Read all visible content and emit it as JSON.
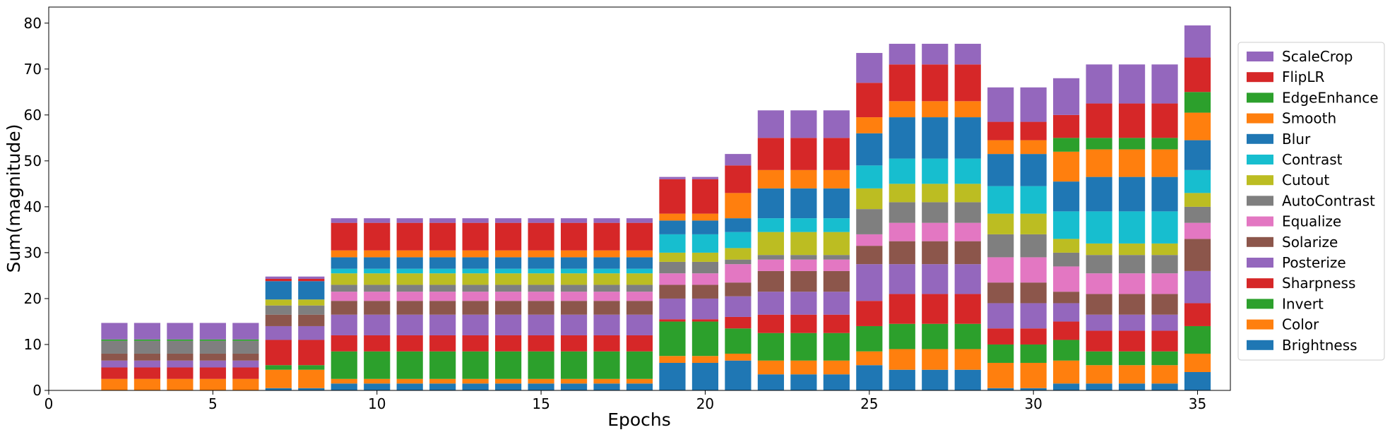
{
  "chart_data": {
    "type": "stacked_bar",
    "xlabel": "Epochs",
    "ylabel": "Sum(magnitude)",
    "x": [
      2,
      3,
      4,
      5,
      6,
      7,
      8,
      9,
      10,
      11,
      12,
      13,
      14,
      15,
      16,
      17,
      18,
      19,
      20,
      21,
      22,
      23,
      24,
      25,
      26,
      27,
      28,
      29,
      30,
      31,
      32,
      33,
      34,
      35
    ],
    "xlim": [
      0,
      36
    ],
    "xticks": [
      0,
      5,
      10,
      15,
      20,
      25,
      30,
      35
    ],
    "ylim": [
      0,
      83.5
    ],
    "yticks": [
      0,
      10,
      20,
      30,
      40,
      50,
      60,
      70,
      80
    ],
    "legend": "right",
    "series": [
      {
        "name": "Brightness",
        "color": "#1f77b4",
        "values": [
          0,
          0,
          0,
          0,
          0,
          0.5,
          0.5,
          1.5,
          1.5,
          1.5,
          1.5,
          1.5,
          1.5,
          1.5,
          1.5,
          1.5,
          1.5,
          6,
          6,
          6.5,
          3.5,
          3.5,
          3.5,
          5.5,
          4.5,
          4.5,
          4.5,
          0.5,
          0.5,
          1.5,
          1.5,
          1.5,
          1.5,
          4
        ]
      },
      {
        "name": "Color",
        "color": "#ff7f0e",
        "values": [
          2.5,
          2.5,
          2.5,
          2.5,
          2.5,
          4,
          4,
          1,
          1,
          1,
          1,
          1,
          1,
          1,
          1,
          1,
          1,
          1.5,
          1.5,
          1.5,
          3,
          3,
          3,
          3,
          4.5,
          4.5,
          4.5,
          5.5,
          5.5,
          5,
          4,
          4,
          4,
          4
        ]
      },
      {
        "name": "Invert",
        "color": "#2ca02c",
        "values": [
          0,
          0,
          0,
          0,
          0,
          1,
          1,
          6,
          6,
          6,
          6,
          6,
          6,
          6,
          6,
          6,
          6,
          7.5,
          7.5,
          5.5,
          6,
          6,
          6,
          5.5,
          5.5,
          5.5,
          5.5,
          4,
          4,
          4.5,
          3,
          3,
          3,
          6
        ]
      },
      {
        "name": "Sharpness",
        "color": "#d62728",
        "values": [
          2.5,
          2.5,
          2.5,
          2.5,
          2.5,
          5.5,
          5.5,
          3.5,
          3.5,
          3.5,
          3.5,
          3.5,
          3.5,
          3.5,
          3.5,
          3.5,
          3.5,
          0.5,
          0.5,
          2.5,
          4,
          4,
          4,
          5.5,
          6.5,
          6.5,
          6.5,
          3.5,
          3.5,
          4,
          4.5,
          4.5,
          4.5,
          5
        ]
      },
      {
        "name": "Posterize",
        "color": "#9467bd",
        "values": [
          1.5,
          1.5,
          1.5,
          1.5,
          1.5,
          3,
          3,
          4.5,
          4.5,
          4.5,
          4.5,
          4.5,
          4.5,
          4.5,
          4.5,
          4.5,
          4.5,
          4.5,
          4.5,
          4.5,
          5,
          5,
          5,
          8,
          6.5,
          6.5,
          6.5,
          5.5,
          5.5,
          4,
          3.5,
          3.5,
          3.5,
          7
        ]
      },
      {
        "name": "Solarize",
        "color": "#8c564b",
        "values": [
          1.5,
          1.5,
          1.5,
          1.5,
          1.5,
          2.5,
          2.5,
          3,
          3,
          3,
          3,
          3,
          3,
          3,
          3,
          3,
          3,
          3,
          3,
          3,
          4.5,
          4.5,
          4.5,
          4,
          5,
          5,
          5,
          4.5,
          4.5,
          2.5,
          4.5,
          4.5,
          4.5,
          7
        ]
      },
      {
        "name": "Equalize",
        "color": "#e377c2",
        "values": [
          0,
          0,
          0,
          0,
          0,
          0,
          0,
          2,
          2,
          2,
          2,
          2,
          2,
          2,
          2,
          2,
          2,
          2.5,
          2.5,
          4,
          2.5,
          2.5,
          2.5,
          2.5,
          4,
          4,
          4,
          5.5,
          5.5,
          5.5,
          4.5,
          4.5,
          4.5,
          3.5
        ]
      },
      {
        "name": "AutoContrast",
        "color": "#7f7f7f",
        "values": [
          2.8,
          2.8,
          2.8,
          2.8,
          2.8,
          2,
          2,
          1.5,
          1.5,
          1.5,
          1.5,
          1.5,
          1.5,
          1.5,
          1.5,
          1.5,
          1.5,
          2.5,
          2.5,
          1,
          1,
          1,
          1,
          5.5,
          4.5,
          4.5,
          4.5,
          5,
          5,
          3,
          4,
          4,
          4,
          3.5
        ]
      },
      {
        "name": "Cutout",
        "color": "#bcbd22",
        "values": [
          0,
          0,
          0,
          0,
          0,
          1.3,
          1.3,
          2.5,
          2.5,
          2.5,
          2.5,
          2.5,
          2.5,
          2.5,
          2.5,
          2.5,
          2.5,
          2,
          2,
          2.5,
          5,
          5,
          5,
          4.5,
          4,
          4,
          4,
          4.5,
          4.5,
          3,
          2.5,
          2.5,
          2.5,
          3
        ]
      },
      {
        "name": "Contrast",
        "color": "#17becf",
        "values": [
          0,
          0,
          0,
          0,
          0,
          0,
          0,
          1,
          1,
          1,
          1,
          1,
          1,
          1,
          1,
          1,
          1,
          4,
          4,
          3.5,
          3,
          3,
          3,
          5,
          5.5,
          5.5,
          5.5,
          6,
          6,
          6,
          7,
          7,
          7,
          5
        ]
      },
      {
        "name": "Blur",
        "color": "#1f77b4",
        "values": [
          0,
          0,
          0,
          0,
          0,
          4,
          4,
          2.5,
          2.5,
          2.5,
          2.5,
          2.5,
          2.5,
          2.5,
          2.5,
          2.5,
          2.5,
          3,
          3,
          3,
          6.5,
          6.5,
          6.5,
          7,
          9,
          9,
          9,
          7,
          7,
          6.5,
          7.5,
          7.5,
          7.5,
          6.5
        ]
      },
      {
        "name": "Smooth",
        "color": "#ff7f0e",
        "values": [
          0,
          0,
          0,
          0,
          0,
          0,
          0,
          1.5,
          1.5,
          1.5,
          1.5,
          1.5,
          1.5,
          1.5,
          1.5,
          1.5,
          1.5,
          1.5,
          1.5,
          5.5,
          4,
          4,
          4,
          3.5,
          3.5,
          3.5,
          3.5,
          3,
          3,
          6.5,
          6,
          6,
          6,
          6
        ]
      },
      {
        "name": "EdgeEnhance",
        "color": "#2ca02c",
        "values": [
          0.3,
          0.3,
          0.3,
          0.3,
          0.3,
          0,
          0,
          0,
          0,
          0,
          0,
          0,
          0,
          0,
          0,
          0,
          0,
          0,
          0,
          0,
          0,
          0,
          0,
          0,
          0,
          0,
          0,
          0,
          0,
          3,
          2.5,
          2.5,
          2.5,
          4.5
        ]
      },
      {
        "name": "FlipLR",
        "color": "#d62728",
        "values": [
          0,
          0,
          0,
          0,
          0,
          0.5,
          0.5,
          6,
          6,
          6,
          6,
          6,
          6,
          6,
          6,
          6,
          6,
          7.5,
          7.5,
          6,
          7,
          7,
          7,
          7.5,
          8,
          8,
          8,
          4,
          4,
          5,
          7.5,
          7.5,
          7.5,
          7.5
        ]
      },
      {
        "name": "ScaleCrop",
        "color": "#9467bd",
        "values": [
          3.6,
          3.6,
          3.6,
          3.6,
          3.6,
          0.5,
          0.5,
          1,
          1,
          1,
          1,
          1,
          1,
          1,
          1,
          1,
          1,
          0.5,
          0.5,
          2.5,
          6,
          6,
          6,
          6.5,
          4.5,
          4.5,
          4.5,
          7.5,
          7.5,
          8,
          8.5,
          8.5,
          8.5,
          7
        ]
      }
    ]
  }
}
